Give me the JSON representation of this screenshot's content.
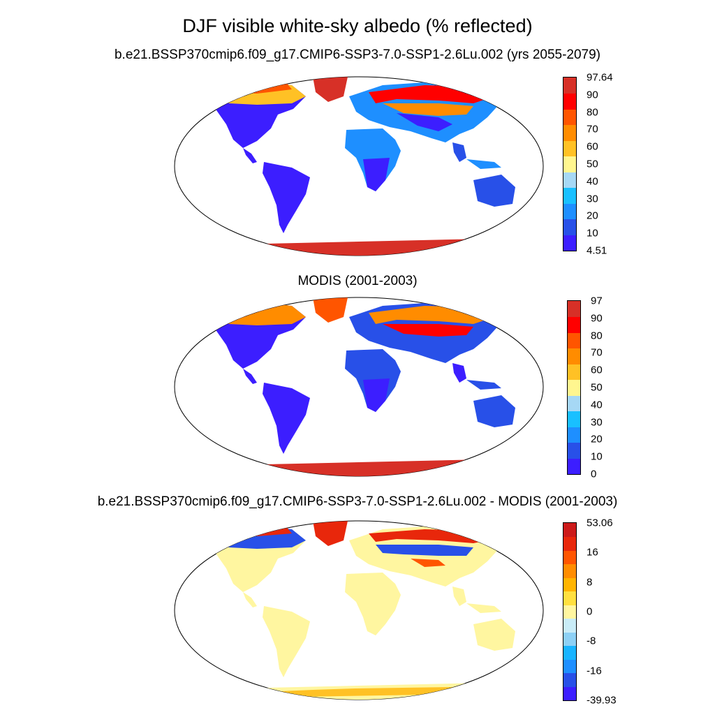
{
  "title": "DJF visible white-sky albedo (% reflected)",
  "panels": [
    {
      "subtitle": "b.e21.BSSP370cmip6.f09_g17.CMIP6-SSP3-7.0-SSP1-2.6Lu.002 (yrs 2055-2079)",
      "colorbar": {
        "labels": [
          "97.64",
          "90",
          "80",
          "70",
          "60",
          "50",
          "40",
          "30",
          "20",
          "10",
          "4.51"
        ],
        "colors": [
          "#d73027",
          "#ff0000",
          "#ff5500",
          "#ff8c00",
          "#ffc125",
          "#fff68f",
          "#a6d8f5",
          "#19c0ff",
          "#1e8fff",
          "#2850e8",
          "#3c1eff"
        ]
      }
    },
    {
      "subtitle": "MODIS (2001-2003)",
      "colorbar": {
        "labels": [
          "97",
          "90",
          "80",
          "70",
          "60",
          "50",
          "40",
          "30",
          "20",
          "10",
          "0"
        ],
        "colors": [
          "#d73027",
          "#ff0000",
          "#ff5500",
          "#ff8c00",
          "#ffc125",
          "#fff68f",
          "#a6d8f5",
          "#19c0ff",
          "#1e8fff",
          "#2850e8",
          "#3c1eff"
        ]
      }
    },
    {
      "subtitle": "b.e21.BSSP370cmip6.f09_g17.CMIP6-SSP3-7.0-SSP1-2.6Lu.002 - MODIS (2001-2003)",
      "colorbar": {
        "labels": [
          "53.06",
          "16",
          "8",
          "0",
          "-8",
          "-16",
          "-39.93"
        ],
        "colors": [
          "#cc1a1a",
          "#e8270b",
          "#ff5500",
          "#ff8c00",
          "#ffb400",
          "#ffe040",
          "#fff6a0",
          "#c9ecf7",
          "#8dd0f5",
          "#19b4ff",
          "#1e8fff",
          "#2850e8",
          "#3c1eff"
        ]
      }
    }
  ]
}
